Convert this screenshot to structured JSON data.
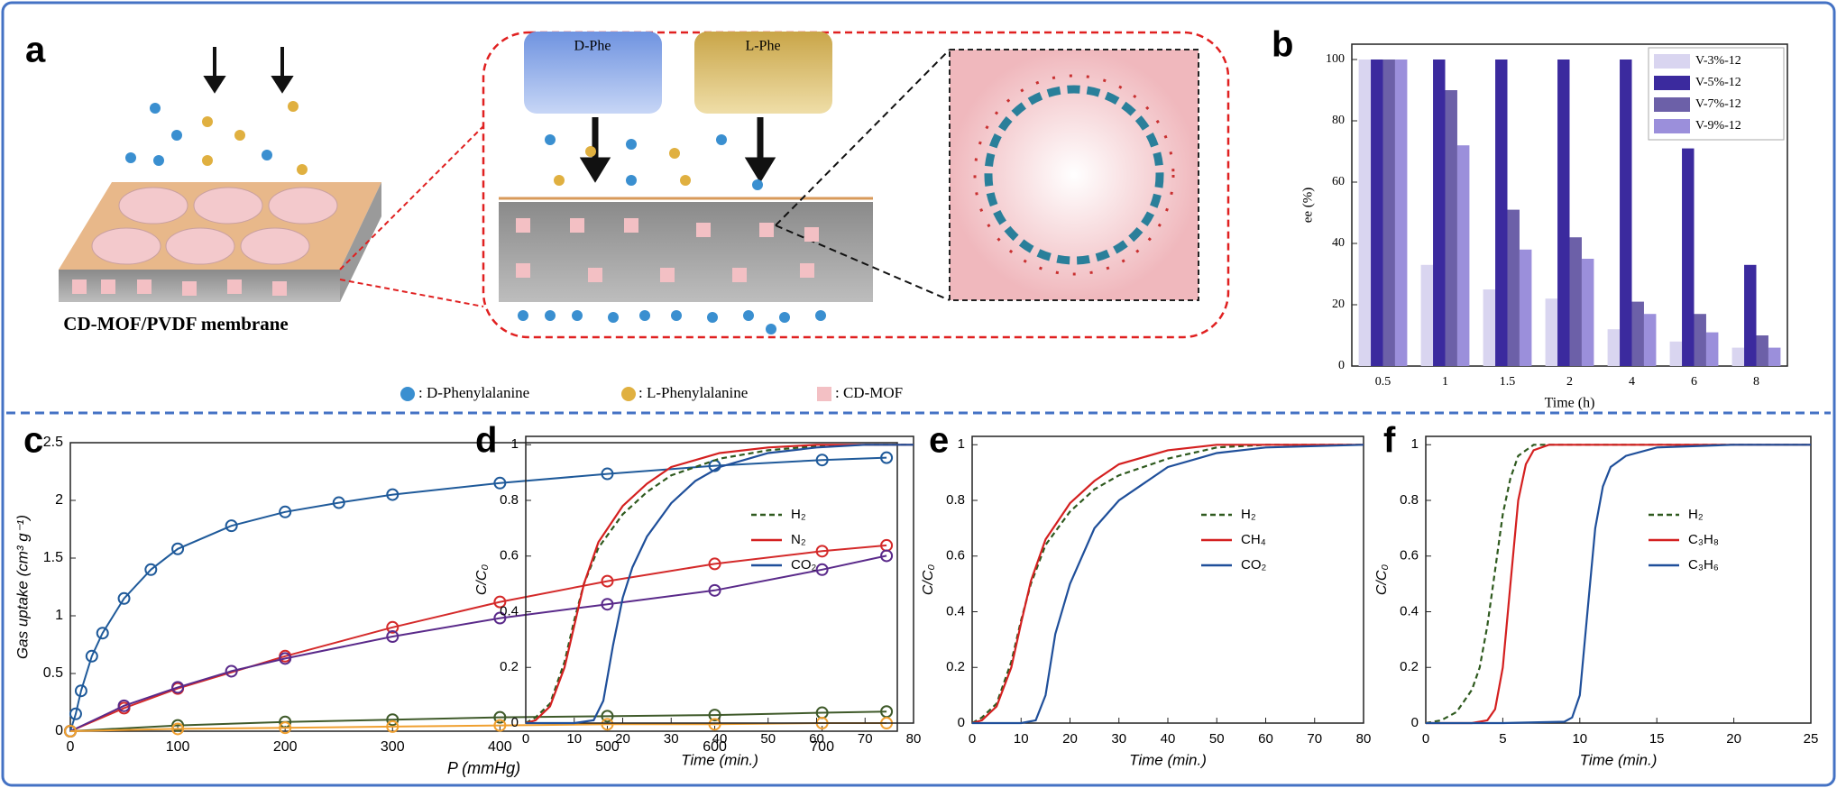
{
  "diagram": {
    "label": "a",
    "d_phe": "D-Phe",
    "l_phe": "L-Phe",
    "membrane": "CD-MOF/PVDF membrane",
    "legend": [
      ": D-Phenylalanine",
      ": L-Phenylalanine",
      ": CD-MOF"
    ]
  },
  "chart_data": [
    {
      "type": "bar",
      "label": "b",
      "xlabel": "Time (h)",
      "ylabel": "ee (%)",
      "categories": [
        "0.5",
        "1",
        "1.5",
        "2",
        "4",
        "6",
        "8"
      ],
      "series": [
        {
          "name": "V-3%-12",
          "color": "#d9d5f0",
          "values": [
            100,
            33,
            25,
            22,
            12,
            8,
            6
          ]
        },
        {
          "name": "V-5%-12",
          "color": "#3b2a9e",
          "values": [
            100,
            100,
            100,
            100,
            100,
            71,
            33
          ]
        },
        {
          "name": "V-7%-12",
          "color": "#6c60a8",
          "values": [
            100,
            90,
            51,
            42,
            21,
            17,
            10
          ]
        },
        {
          "name": "V-9%-12",
          "color": "#9b8fdb",
          "values": [
            100,
            72,
            38,
            35,
            17,
            11,
            6
          ]
        }
      ],
      "ylim": [
        0,
        105
      ],
      "yticks": [
        0,
        20,
        40,
        60,
        80,
        100
      ],
      "legend": "upper right"
    },
    {
      "type": "line",
      "label": "c",
      "xlabel": "P (mmHg)",
      "ylabel": "Gas uptake (cm³ g⁻¹)",
      "markers": true,
      "series": [
        {
          "color": "#1f5a9a",
          "x": [
            0,
            5,
            10,
            20,
            30,
            50,
            75,
            100,
            150,
            200,
            250,
            300,
            400,
            500,
            600,
            700,
            760
          ],
          "values": [
            0,
            0.15,
            0.35,
            0.65,
            0.85,
            1.15,
            1.4,
            1.58,
            1.78,
            1.9,
            1.98,
            2.05,
            2.15,
            2.23,
            2.3,
            2.35,
            2.37
          ]
        },
        {
          "color": "#d42a2a",
          "x": [
            0,
            50,
            100,
            200,
            300,
            400,
            500,
            600,
            700,
            760
          ],
          "values": [
            0,
            0.2,
            0.37,
            0.65,
            0.9,
            1.12,
            1.3,
            1.45,
            1.56,
            1.61
          ]
        },
        {
          "color": "#5a2a8a",
          "x": [
            0,
            50,
            100,
            150,
            200,
            300,
            400,
            500,
            600,
            700,
            760
          ],
          "values": [
            0,
            0.22,
            0.38,
            0.52,
            0.63,
            0.82,
            0.98,
            1.1,
            1.22,
            1.4,
            1.52
          ]
        },
        {
          "color": "#3f5a2a",
          "x": [
            0,
            100,
            200,
            300,
            400,
            500,
            600,
            700,
            760
          ],
          "values": [
            0,
            0.05,
            0.08,
            0.1,
            0.12,
            0.13,
            0.14,
            0.16,
            0.17
          ]
        },
        {
          "color": "#f0a030",
          "x": [
            0,
            100,
            200,
            300,
            400,
            500,
            600,
            700,
            760
          ],
          "values": [
            0,
            0.02,
            0.03,
            0.04,
            0.05,
            0.06,
            0.06,
            0.07,
            0.07
          ]
        }
      ],
      "xlim": [
        0,
        770
      ],
      "xticks": [
        0,
        100,
        200,
        300,
        400,
        500,
        600,
        700
      ],
      "ylim": [
        0,
        2.5
      ],
      "yticks": [
        0,
        0.5,
        1,
        1.5,
        2,
        2.5
      ]
    },
    {
      "type": "line",
      "label": "d",
      "xlabel": "Time (min.)",
      "ylabel": "C/C₀",
      "series": [
        {
          "name": "H₂",
          "color": "#2f5a1f",
          "dash": true,
          "x": [
            0,
            2,
            5,
            8,
            10,
            12,
            15,
            20,
            25,
            30,
            40,
            50,
            60,
            70,
            80
          ],
          "values": [
            0,
            0.02,
            0.07,
            0.22,
            0.37,
            0.5,
            0.63,
            0.75,
            0.83,
            0.89,
            0.95,
            0.98,
            0.995,
            1,
            1
          ]
        },
        {
          "name": "N₂",
          "color": "#d42020",
          "x": [
            0,
            2,
            5,
            8,
            10,
            12,
            15,
            20,
            25,
            30,
            40,
            50,
            60,
            70,
            80
          ],
          "values": [
            0,
            0.01,
            0.06,
            0.2,
            0.35,
            0.5,
            0.65,
            0.78,
            0.86,
            0.92,
            0.97,
            0.99,
            1,
            1,
            1
          ]
        },
        {
          "name": "CO₂",
          "color": "#1f4f9a",
          "x": [
            0,
            5,
            10,
            14,
            16,
            18,
            20,
            22,
            25,
            30,
            35,
            40,
            50,
            60,
            70,
            80
          ],
          "values": [
            0,
            0,
            0,
            0.01,
            0.08,
            0.28,
            0.45,
            0.56,
            0.67,
            0.79,
            0.87,
            0.92,
            0.97,
            0.99,
            1,
            1
          ]
        }
      ],
      "xlim": [
        0,
        80
      ],
      "xticks": [
        0,
        10,
        20,
        30,
        40,
        50,
        60,
        70,
        80
      ],
      "ylim": [
        0,
        1.03
      ],
      "yticks": [
        0,
        0.2,
        0.4,
        0.6,
        0.8,
        1
      ],
      "legend": "upper right"
    },
    {
      "type": "line",
      "label": "e",
      "xlabel": "Time (min.)",
      "ylabel": "C/C₀",
      "series": [
        {
          "name": "H₂",
          "color": "#2f5a1f",
          "dash": true,
          "x": [
            0,
            2,
            5,
            8,
            10,
            12,
            15,
            20,
            25,
            30,
            40,
            50,
            60,
            70,
            80
          ],
          "values": [
            0,
            0.02,
            0.07,
            0.22,
            0.37,
            0.5,
            0.64,
            0.76,
            0.84,
            0.89,
            0.95,
            0.99,
            1,
            1,
            1
          ]
        },
        {
          "name": "CH₄",
          "color": "#d42020",
          "x": [
            0,
            2,
            5,
            8,
            10,
            12,
            15,
            20,
            25,
            30,
            40,
            50,
            60,
            70,
            80
          ],
          "values": [
            0,
            0.01,
            0.06,
            0.2,
            0.36,
            0.51,
            0.66,
            0.79,
            0.87,
            0.93,
            0.98,
            1,
            1,
            1,
            1
          ]
        },
        {
          "name": "CO₂",
          "color": "#1f4f9a",
          "x": [
            0,
            5,
            10,
            13,
            15,
            17,
            20,
            25,
            30,
            40,
            50,
            60,
            80
          ],
          "values": [
            0,
            0,
            0,
            0.01,
            0.1,
            0.32,
            0.5,
            0.7,
            0.8,
            0.92,
            0.97,
            0.99,
            1
          ]
        }
      ],
      "xlim": [
        0,
        80
      ],
      "xticks": [
        0,
        10,
        20,
        30,
        40,
        50,
        60,
        70,
        80
      ],
      "ylim": [
        0,
        1.03
      ],
      "yticks": [
        0,
        0.2,
        0.4,
        0.6,
        0.8,
        1
      ],
      "legend": "upper right"
    },
    {
      "type": "line",
      "label": "f",
      "xlabel": "Time (min.)",
      "ylabel": "C/C₀",
      "series": [
        {
          "name": "H₂",
          "color": "#2f5a1f",
          "dash": true,
          "x": [
            0,
            1,
            2,
            3,
            3.5,
            4,
            4.5,
            5,
            5.5,
            6,
            7,
            8,
            10,
            25
          ],
          "values": [
            0,
            0.01,
            0.04,
            0.12,
            0.2,
            0.35,
            0.55,
            0.75,
            0.88,
            0.96,
            1,
            1,
            1,
            1
          ]
        },
        {
          "name": "C₃H₈",
          "color": "#d42020",
          "x": [
            0,
            3,
            4,
            4.5,
            5,
            5.5,
            6,
            6.5,
            7,
            8,
            10,
            25
          ],
          "values": [
            0,
            0,
            0.01,
            0.05,
            0.2,
            0.5,
            0.8,
            0.93,
            0.98,
            1,
            1,
            1
          ]
        },
        {
          "name": "C₃H₆",
          "color": "#1f4f9a",
          "x": [
            0,
            5,
            9,
            9.5,
            10,
            10.5,
            11,
            11.5,
            12,
            13,
            15,
            20,
            25
          ],
          "values": [
            0,
            0,
            0.005,
            0.02,
            0.1,
            0.4,
            0.7,
            0.85,
            0.92,
            0.96,
            0.99,
            1,
            1
          ]
        }
      ],
      "xlim": [
        0,
        25
      ],
      "xticks": [
        0,
        5,
        10,
        15,
        20,
        25
      ],
      "ylim": [
        0,
        1.03
      ],
      "yticks": [
        0,
        0.2,
        0.4,
        0.6,
        0.8,
        1
      ],
      "legend": "upper right"
    }
  ]
}
